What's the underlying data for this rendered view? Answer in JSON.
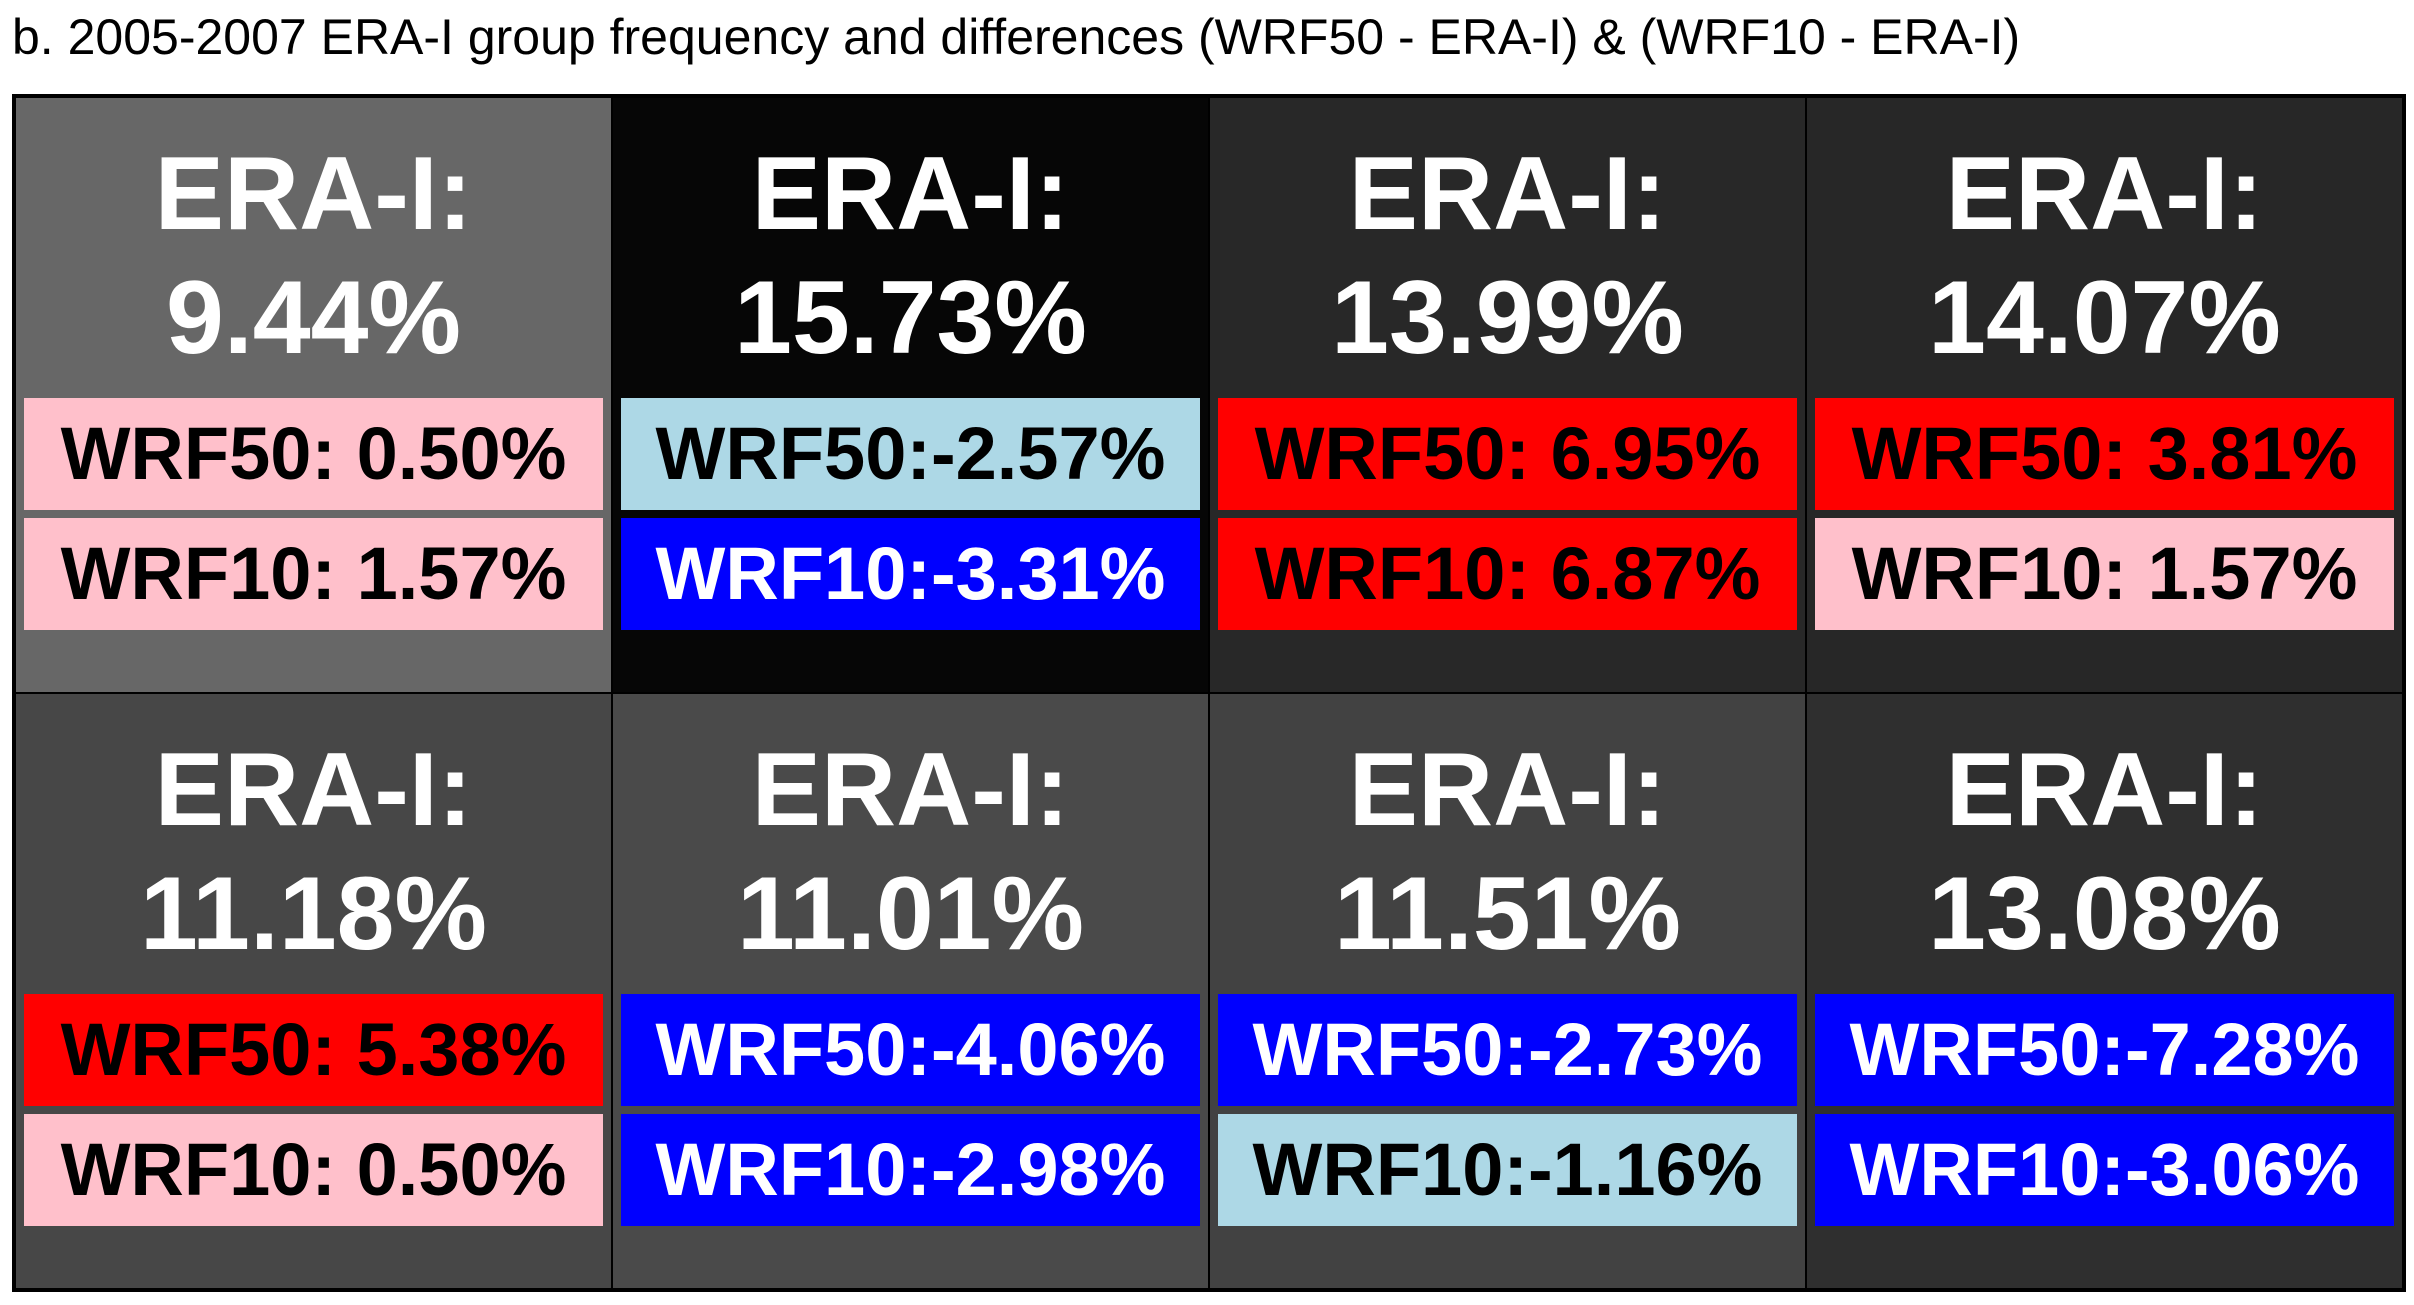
{
  "title": "b. 2005-2007 ERA-I group frequency and differences (WRF50 - ERA-I) & (WRF10 - ERA-I)",
  "colors": {
    "strong_positive": "#ff0000",
    "weak_positive": "#ffc0cb",
    "weak_negative": "#add8e6",
    "strong_negative": "#0000ff",
    "text_on_light": "#000000",
    "text_on_dark": "#ffffff"
  },
  "cells": [
    {
      "era_label": "ERA-I:",
      "era_value": "9.44%",
      "bg": "#676767",
      "wrf50": {
        "text": "WRF50: 0.50%",
        "bg": "#ffc0cb",
        "fg": "#000000"
      },
      "wrf10": {
        "text": "WRF10: 1.57%",
        "bg": "#ffc0cb",
        "fg": "#000000"
      }
    },
    {
      "era_label": "ERA-I:",
      "era_value": "15.73%",
      "bg": "#060606",
      "wrf50": {
        "text": "WRF50:-2.57%",
        "bg": "#add8e6",
        "fg": "#000000"
      },
      "wrf10": {
        "text": "WRF10:-3.31%",
        "bg": "#0000ff",
        "fg": "#ffffff"
      }
    },
    {
      "era_label": "ERA-I:",
      "era_value": "13.99%",
      "bg": "#282828",
      "wrf50": {
        "text": "WRF50: 6.95%",
        "bg": "#ff0000",
        "fg": "#000000"
      },
      "wrf10": {
        "text": "WRF10: 6.87%",
        "bg": "#ff0000",
        "fg": "#000000"
      }
    },
    {
      "era_label": "ERA-I:",
      "era_value": "14.07%",
      "bg": "#272727",
      "wrf50": {
        "text": "WRF50: 3.81%",
        "bg": "#ff0000",
        "fg": "#000000"
      },
      "wrf10": {
        "text": "WRF10: 1.57%",
        "bg": "#ffc0cb",
        "fg": "#000000"
      }
    },
    {
      "era_label": "ERA-I:",
      "era_value": "11.18%",
      "bg": "#474747",
      "wrf50": {
        "text": "WRF50: 5.38%",
        "bg": "#ff0000",
        "fg": "#000000"
      },
      "wrf10": {
        "text": "WRF10: 0.50%",
        "bg": "#ffc0cb",
        "fg": "#000000"
      }
    },
    {
      "era_label": "ERA-I:",
      "era_value": "11.01%",
      "bg": "#4a4a4a",
      "wrf50": {
        "text": "WRF50:-4.06%",
        "bg": "#0000ff",
        "fg": "#ffffff"
      },
      "wrf10": {
        "text": "WRF10:-2.98%",
        "bg": "#0000ff",
        "fg": "#ffffff"
      }
    },
    {
      "era_label": "ERA-I:",
      "era_value": "11.51%",
      "bg": "#424242",
      "wrf50": {
        "text": "WRF50:-2.73%",
        "bg": "#0000ff",
        "fg": "#ffffff"
      },
      "wrf10": {
        "text": "WRF10:-1.16%",
        "bg": "#add8e6",
        "fg": "#000000"
      }
    },
    {
      "era_label": "ERA-I:",
      "era_value": "13.08%",
      "bg": "#2f2f2f",
      "wrf50": {
        "text": "WRF50:-7.28%",
        "bg": "#0000ff",
        "fg": "#ffffff"
      },
      "wrf10": {
        "text": "WRF10:-3.06%",
        "bg": "#0000ff",
        "fg": "#ffffff"
      }
    }
  ]
}
